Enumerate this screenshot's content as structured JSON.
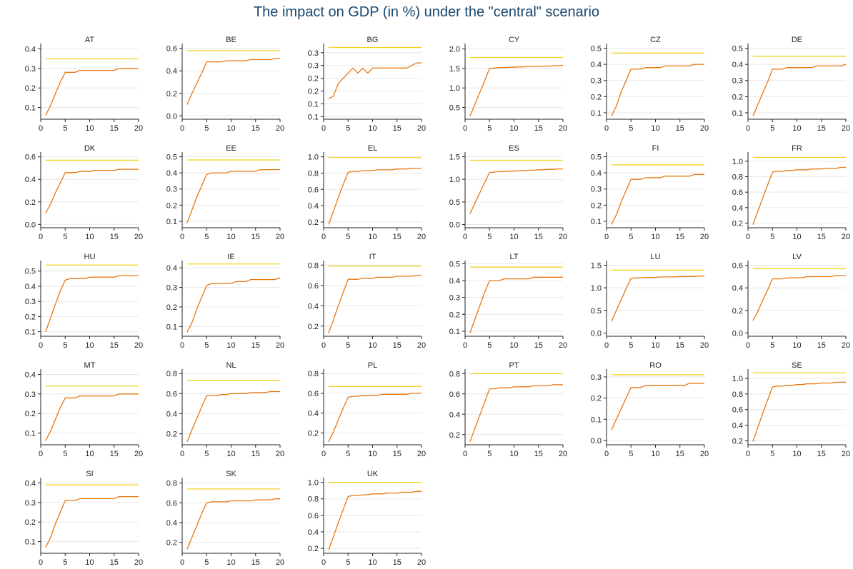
{
  "title": "The impact on GDP (in %) under the \"central\" scenario",
  "colors": {
    "series": "#e8770e",
    "reference": "#f2d21f",
    "grid": "#e8e8e8",
    "axis": "#222222"
  },
  "chart_data": {
    "type": "line",
    "title": "The impact on GDP (in %) under the \"central\" scenario",
    "layout": "small-multiples-6-columns",
    "grid": true,
    "legend": "none",
    "xlim": [
      0,
      20
    ],
    "xticks": [
      0,
      5,
      10,
      15,
      20
    ],
    "x": [
      1,
      2,
      3,
      4,
      5,
      6,
      7,
      8,
      9,
      10,
      11,
      12,
      13,
      14,
      15,
      16,
      17,
      18,
      19,
      20
    ],
    "panels": [
      {
        "name": "AT",
        "yticks": [
          "0.1",
          "0.2",
          "0.3",
          "0.4"
        ],
        "ytickvals": [
          0.1,
          0.2,
          0.3,
          0.4
        ],
        "ylim": [
          0.04,
          0.42
        ],
        "reference": 0.35,
        "values": [
          0.06,
          0.11,
          0.17,
          0.23,
          0.28,
          0.28,
          0.28,
          0.29,
          0.29,
          0.29,
          0.29,
          0.29,
          0.29,
          0.29,
          0.29,
          0.3,
          0.3,
          0.3,
          0.3,
          0.3
        ]
      },
      {
        "name": "BE",
        "yticks": [
          "0.0",
          "0.2",
          "0.4",
          "0.6"
        ],
        "ytickvals": [
          0,
          0.2,
          0.4,
          0.6
        ],
        "ylim": [
          -0.03,
          0.63
        ],
        "reference": 0.58,
        "values": [
          0.1,
          0.2,
          0.29,
          0.38,
          0.48,
          0.48,
          0.48,
          0.48,
          0.49,
          0.49,
          0.49,
          0.49,
          0.49,
          0.5,
          0.5,
          0.5,
          0.5,
          0.5,
          0.51,
          0.51
        ]
      },
      {
        "name": "BG",
        "yticks": [
          "0.1",
          "0.1",
          "0.2",
          "0.2",
          "0.3",
          "0.3"
        ],
        "ytickvals": [
          0.05,
          0.1,
          0.15,
          0.2,
          0.25,
          0.3
        ],
        "ylim": [
          0.04,
          0.33
        ],
        "reference": 0.32,
        "values": [
          0.12,
          0.13,
          0.18,
          0.2,
          0.22,
          0.24,
          0.22,
          0.24,
          0.22,
          0.24,
          0.24,
          0.24,
          0.24,
          0.24,
          0.24,
          0.24,
          0.24,
          0.25,
          0.26,
          0.26
        ]
      },
      {
        "name": "CY",
        "yticks": [
          "0.5",
          "1.0",
          "1.5",
          "2.0"
        ],
        "ytickvals": [
          0.5,
          1.0,
          1.5,
          2.0
        ],
        "ylim": [
          0.2,
          2.1
        ],
        "reference": 1.78,
        "values": [
          0.28,
          0.58,
          0.88,
          1.18,
          1.5,
          1.51,
          1.52,
          1.52,
          1.53,
          1.53,
          1.54,
          1.54,
          1.55,
          1.55,
          1.55,
          1.56,
          1.56,
          1.57,
          1.57,
          1.58
        ]
      },
      {
        "name": "CZ",
        "yticks": [
          "0.1",
          "0.2",
          "0.3",
          "0.4",
          "0.5"
        ],
        "ytickvals": [
          0.1,
          0.2,
          0.3,
          0.4,
          0.5
        ],
        "ylim": [
          0.06,
          0.52
        ],
        "reference": 0.47,
        "values": [
          0.08,
          0.14,
          0.23,
          0.3,
          0.37,
          0.37,
          0.37,
          0.38,
          0.38,
          0.38,
          0.38,
          0.39,
          0.39,
          0.39,
          0.39,
          0.39,
          0.39,
          0.4,
          0.4,
          0.4
        ]
      },
      {
        "name": "DE",
        "yticks": [
          "0.1",
          "0.2",
          "0.3",
          "0.4",
          "0.5"
        ],
        "ytickvals": [
          0.1,
          0.2,
          0.3,
          0.4,
          0.5
        ],
        "ylim": [
          0.06,
          0.52
        ],
        "reference": 0.45,
        "values": [
          0.08,
          0.15,
          0.22,
          0.29,
          0.37,
          0.37,
          0.37,
          0.38,
          0.38,
          0.38,
          0.38,
          0.38,
          0.38,
          0.39,
          0.39,
          0.39,
          0.39,
          0.39,
          0.39,
          0.4
        ]
      },
      {
        "name": "DK",
        "yticks": [
          "0.0",
          "0.2",
          "0.4",
          "0.6"
        ],
        "ytickvals": [
          0,
          0.2,
          0.4,
          0.6
        ],
        "ylim": [
          -0.03,
          0.63
        ],
        "reference": 0.57,
        "values": [
          0.1,
          0.18,
          0.28,
          0.37,
          0.46,
          0.46,
          0.46,
          0.47,
          0.47,
          0.47,
          0.48,
          0.48,
          0.48,
          0.48,
          0.48,
          0.49,
          0.49,
          0.49,
          0.49,
          0.49
        ]
      },
      {
        "name": "EE",
        "yticks": [
          "0.1",
          "0.2",
          "0.3",
          "0.4",
          "0.5"
        ],
        "ytickvals": [
          0.1,
          0.2,
          0.3,
          0.4,
          0.5
        ],
        "ylim": [
          0.06,
          0.52
        ],
        "reference": 0.48,
        "values": [
          0.09,
          0.17,
          0.25,
          0.32,
          0.39,
          0.4,
          0.4,
          0.4,
          0.4,
          0.41,
          0.41,
          0.41,
          0.41,
          0.41,
          0.41,
          0.42,
          0.42,
          0.42,
          0.42,
          0.42
        ]
      },
      {
        "name": "EL",
        "yticks": [
          "0.2",
          "0.4",
          "0.6",
          "0.8",
          "1.0"
        ],
        "ytickvals": [
          0.2,
          0.4,
          0.6,
          0.8,
          1.0
        ],
        "ylim": [
          0.13,
          1.04
        ],
        "reference": 0.99,
        "values": [
          0.17,
          0.33,
          0.5,
          0.66,
          0.81,
          0.82,
          0.82,
          0.83,
          0.83,
          0.83,
          0.84,
          0.84,
          0.84,
          0.84,
          0.85,
          0.85,
          0.85,
          0.86,
          0.86,
          0.86
        ]
      },
      {
        "name": "ES",
        "yticks": [
          "0.0",
          "0.5",
          "1.0",
          "1.5"
        ],
        "ytickvals": [
          0,
          0.5,
          1.0,
          1.5
        ],
        "ylim": [
          -0.07,
          1.57
        ],
        "reference": 1.42,
        "values": [
          0.24,
          0.47,
          0.7,
          0.93,
          1.15,
          1.16,
          1.17,
          1.17,
          1.18,
          1.18,
          1.19,
          1.19,
          1.2,
          1.2,
          1.21,
          1.21,
          1.22,
          1.22,
          1.23,
          1.23
        ]
      },
      {
        "name": "FI",
        "yticks": [
          "0.1",
          "0.2",
          "0.3",
          "0.4",
          "0.5"
        ],
        "ytickvals": [
          0.1,
          0.2,
          0.3,
          0.4,
          0.5
        ],
        "ylim": [
          0.06,
          0.52
        ],
        "reference": 0.45,
        "values": [
          0.08,
          0.14,
          0.22,
          0.29,
          0.36,
          0.36,
          0.36,
          0.37,
          0.37,
          0.37,
          0.37,
          0.38,
          0.38,
          0.38,
          0.38,
          0.38,
          0.38,
          0.39,
          0.39,
          0.39
        ]
      },
      {
        "name": "FR",
        "yticks": [
          "0.2",
          "0.4",
          "0.6",
          "0.8",
          "1.0"
        ],
        "ytickvals": [
          0.2,
          0.4,
          0.6,
          0.8,
          1.0
        ],
        "ylim": [
          0.14,
          1.1
        ],
        "reference": 1.05,
        "values": [
          0.18,
          0.35,
          0.52,
          0.69,
          0.86,
          0.87,
          0.87,
          0.88,
          0.88,
          0.89,
          0.89,
          0.89,
          0.9,
          0.9,
          0.9,
          0.91,
          0.91,
          0.91,
          0.92,
          0.92
        ]
      },
      {
        "name": "HU",
        "yticks": [
          "0.1",
          "0.2",
          "0.3",
          "0.4",
          "0.5"
        ],
        "ytickvals": [
          0.1,
          0.2,
          0.3,
          0.4,
          0.5
        ],
        "ylim": [
          0.07,
          0.56
        ],
        "reference": 0.54,
        "values": [
          0.1,
          0.19,
          0.28,
          0.37,
          0.44,
          0.45,
          0.45,
          0.45,
          0.45,
          0.46,
          0.46,
          0.46,
          0.46,
          0.46,
          0.46,
          0.47,
          0.47,
          0.47,
          0.47,
          0.47
        ]
      },
      {
        "name": "IE",
        "yticks": [
          "0.1",
          "0.2",
          "0.3",
          "0.4"
        ],
        "ytickvals": [
          0.1,
          0.2,
          0.3,
          0.4
        ],
        "ylim": [
          0.05,
          0.43
        ],
        "reference": 0.42,
        "values": [
          0.07,
          0.12,
          0.19,
          0.25,
          0.31,
          0.32,
          0.32,
          0.32,
          0.32,
          0.32,
          0.33,
          0.33,
          0.33,
          0.34,
          0.34,
          0.34,
          0.34,
          0.34,
          0.34,
          0.35
        ]
      },
      {
        "name": "IT",
        "yticks": [
          "0.2",
          "0.4",
          "0.6",
          "0.8"
        ],
        "ytickvals": [
          0.2,
          0.4,
          0.6,
          0.8
        ],
        "ylim": [
          0.1,
          0.83
        ],
        "reference": 0.79,
        "values": [
          0.13,
          0.26,
          0.4,
          0.53,
          0.66,
          0.66,
          0.66,
          0.67,
          0.67,
          0.67,
          0.68,
          0.68,
          0.68,
          0.68,
          0.69,
          0.69,
          0.69,
          0.69,
          0.7,
          0.7
        ]
      },
      {
        "name": "LT",
        "yticks": [
          "0.1",
          "0.2",
          "0.3",
          "0.4",
          "0.5"
        ],
        "ytickvals": [
          0.1,
          0.2,
          0.3,
          0.4,
          0.5
        ],
        "ylim": [
          0.07,
          0.51
        ],
        "reference": 0.48,
        "values": [
          0.09,
          0.17,
          0.25,
          0.33,
          0.4,
          0.4,
          0.4,
          0.41,
          0.41,
          0.41,
          0.41,
          0.41,
          0.41,
          0.42,
          0.42,
          0.42,
          0.42,
          0.42,
          0.42,
          0.42
        ]
      },
      {
        "name": "LU",
        "yticks": [
          "0.0",
          "0.5",
          "1.0",
          "1.5"
        ],
        "ytickvals": [
          0,
          0.5,
          1.0,
          1.5
        ],
        "ylim": [
          -0.07,
          1.57
        ],
        "reference": 1.39,
        "values": [
          0.26,
          0.5,
          0.74,
          0.98,
          1.21,
          1.22,
          1.22,
          1.23,
          1.23,
          1.23,
          1.24,
          1.24,
          1.24,
          1.24,
          1.25,
          1.25,
          1.25,
          1.25,
          1.26,
          1.26
        ]
      },
      {
        "name": "LV",
        "yticks": [
          "0.0",
          "0.2",
          "0.4",
          "0.6"
        ],
        "ytickvals": [
          0,
          0.2,
          0.4,
          0.6
        ],
        "ylim": [
          -0.03,
          0.63
        ],
        "reference": 0.57,
        "values": [
          0.11,
          0.19,
          0.29,
          0.38,
          0.48,
          0.48,
          0.48,
          0.49,
          0.49,
          0.49,
          0.49,
          0.5,
          0.5,
          0.5,
          0.5,
          0.5,
          0.5,
          0.51,
          0.51,
          0.51
        ]
      },
      {
        "name": "MT",
        "yticks": [
          "0.1",
          "0.2",
          "0.3",
          "0.4"
        ],
        "ytickvals": [
          0.1,
          0.2,
          0.3,
          0.4
        ],
        "ylim": [
          0.04,
          0.42
        ],
        "reference": 0.34,
        "values": [
          0.06,
          0.11,
          0.17,
          0.23,
          0.28,
          0.28,
          0.28,
          0.29,
          0.29,
          0.29,
          0.29,
          0.29,
          0.29,
          0.29,
          0.29,
          0.3,
          0.3,
          0.3,
          0.3,
          0.3
        ]
      },
      {
        "name": "NL",
        "yticks": [
          "0.2",
          "0.4",
          "0.6",
          "0.8"
        ],
        "ytickvals": [
          0.2,
          0.4,
          0.6,
          0.8
        ],
        "ylim": [
          0.09,
          0.83
        ],
        "reference": 0.73,
        "values": [
          0.12,
          0.24,
          0.35,
          0.47,
          0.58,
          0.58,
          0.58,
          0.59,
          0.59,
          0.6,
          0.6,
          0.6,
          0.6,
          0.61,
          0.61,
          0.61,
          0.61,
          0.62,
          0.62,
          0.62
        ]
      },
      {
        "name": "PL",
        "yticks": [
          "0.2",
          "0.4",
          "0.6",
          "0.8"
        ],
        "ytickvals": [
          0.2,
          0.4,
          0.6,
          0.8
        ],
        "ylim": [
          0.08,
          0.83
        ],
        "reference": 0.67,
        "values": [
          0.11,
          0.21,
          0.33,
          0.45,
          0.56,
          0.57,
          0.57,
          0.58,
          0.58,
          0.58,
          0.58,
          0.59,
          0.59,
          0.59,
          0.59,
          0.59,
          0.59,
          0.6,
          0.6,
          0.6
        ]
      },
      {
        "name": "PT",
        "yticks": [
          "0.2",
          "0.4",
          "0.6",
          "0.8"
        ],
        "ytickvals": [
          0.2,
          0.4,
          0.6,
          0.8
        ],
        "ylim": [
          0.1,
          0.83
        ],
        "reference": 0.8,
        "values": [
          0.13,
          0.26,
          0.39,
          0.52,
          0.65,
          0.65,
          0.66,
          0.66,
          0.66,
          0.67,
          0.67,
          0.67,
          0.67,
          0.68,
          0.68,
          0.68,
          0.68,
          0.69,
          0.69,
          0.69
        ]
      },
      {
        "name": "RO",
        "yticks": [
          "0.0",
          "0.1",
          "0.2",
          "0.3"
        ],
        "ytickvals": [
          0,
          0.1,
          0.2,
          0.3
        ],
        "ylim": [
          -0.02,
          0.33
        ],
        "reference": 0.31,
        "values": [
          0.05,
          0.1,
          0.15,
          0.2,
          0.25,
          0.25,
          0.25,
          0.26,
          0.26,
          0.26,
          0.26,
          0.26,
          0.26,
          0.26,
          0.26,
          0.26,
          0.27,
          0.27,
          0.27,
          0.27
        ]
      },
      {
        "name": "SE",
        "yticks": [
          "0.2",
          "0.4",
          "0.6",
          "0.8",
          "1.0"
        ],
        "ytickvals": [
          0.2,
          0.4,
          0.6,
          0.8,
          1.0
        ],
        "ylim": [
          0.15,
          1.1
        ],
        "reference": 1.07,
        "values": [
          0.19,
          0.37,
          0.55,
          0.72,
          0.89,
          0.9,
          0.9,
          0.91,
          0.91,
          0.92,
          0.92,
          0.93,
          0.93,
          0.93,
          0.94,
          0.94,
          0.94,
          0.95,
          0.95,
          0.95
        ]
      },
      {
        "name": "SI",
        "yticks": [
          "0.1",
          "0.2",
          "0.3",
          "0.4"
        ],
        "ytickvals": [
          0.1,
          0.2,
          0.3,
          0.4
        ],
        "ylim": [
          0.04,
          0.42
        ],
        "reference": 0.39,
        "values": [
          0.07,
          0.12,
          0.19,
          0.25,
          0.31,
          0.31,
          0.31,
          0.32,
          0.32,
          0.32,
          0.32,
          0.32,
          0.32,
          0.32,
          0.32,
          0.33,
          0.33,
          0.33,
          0.33,
          0.33
        ]
      },
      {
        "name": "SK",
        "yticks": [
          "0.2",
          "0.4",
          "0.6",
          "0.8"
        ],
        "ytickvals": [
          0.2,
          0.4,
          0.6,
          0.8
        ],
        "ylim": [
          0.09,
          0.84
        ],
        "reference": 0.74,
        "values": [
          0.13,
          0.25,
          0.37,
          0.49,
          0.6,
          0.61,
          0.61,
          0.61,
          0.61,
          0.62,
          0.62,
          0.62,
          0.62,
          0.62,
          0.63,
          0.63,
          0.63,
          0.63,
          0.64,
          0.64
        ]
      },
      {
        "name": "UK",
        "yticks": [
          "0.2",
          "0.4",
          "0.6",
          "0.8",
          "1.0"
        ],
        "ytickvals": [
          0.2,
          0.4,
          0.6,
          0.8,
          1.0
        ],
        "ylim": [
          0.14,
          1.04
        ],
        "reference": 1.0,
        "values": [
          0.18,
          0.34,
          0.51,
          0.67,
          0.83,
          0.84,
          0.84,
          0.85,
          0.85,
          0.86,
          0.86,
          0.86,
          0.87,
          0.87,
          0.87,
          0.88,
          0.88,
          0.88,
          0.89,
          0.89
        ]
      }
    ]
  }
}
